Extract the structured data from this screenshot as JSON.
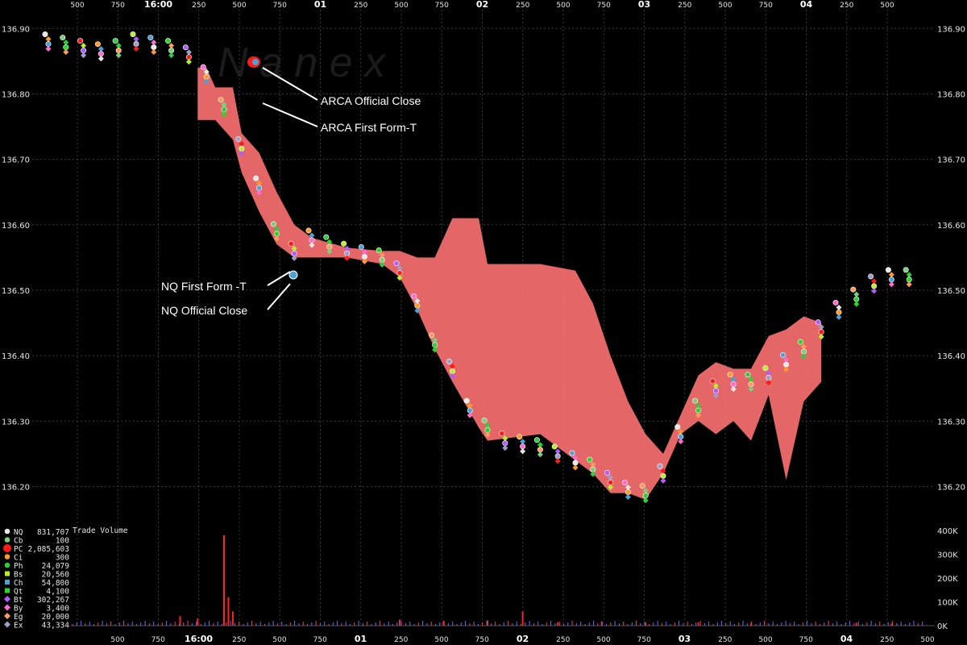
{
  "colors": {
    "background": "#000000",
    "grid": "#3a3a3a",
    "nbbo_band": "#f06b6b",
    "volume": "#ff2020",
    "annotation_line": "#ffffff"
  },
  "watermark": "N a n e x",
  "chart_data": {
    "type": "scatter",
    "title": "",
    "xlabel": "",
    "ylabel": "",
    "x_axis": {
      "categorical_time_ticks": [
        "500",
        "750",
        "16:00",
        "250",
        "500",
        "750",
        "01",
        "250",
        "500",
        "750",
        "02",
        "250",
        "500",
        "750",
        "03",
        "250",
        "500",
        "750",
        "04",
        "250",
        "500"
      ],
      "bold_ticks": [
        "16:00",
        "01",
        "02",
        "03",
        "04"
      ]
    },
    "y_axis": {
      "ticks": [
        "136.90",
        "136.80",
        "136.70",
        "136.60",
        "136.50",
        "136.40",
        "136.30",
        "136.20"
      ],
      "ylim": [
        136.155,
        136.925
      ]
    },
    "volume_axis": {
      "label": "Trade Volume",
      "ticks": [
        "400K",
        "300K",
        "200K",
        "100K",
        "0K"
      ],
      "ylim": [
        0,
        400000
      ]
    },
    "annotations": [
      {
        "text": "ARCA Official Close",
        "price": 136.875
      },
      {
        "text": "ARCA First Form-T",
        "price": 136.81
      },
      {
        "text": "NQ First Form -T",
        "price": 136.56
      },
      {
        "text": "NQ Official Close",
        "price": 136.54
      }
    ],
    "legend": [
      {
        "code": "NQ",
        "count": "831,707",
        "color": "#e8e8e8",
        "marker": "circle"
      },
      {
        "code": "Cb",
        "count": "100",
        "color": "#7ad07a",
        "marker": "circle"
      },
      {
        "code": "PC",
        "count": "2,085,603",
        "color": "#ff1a1a",
        "marker": "big-circle"
      },
      {
        "code": "Ci",
        "count": "300",
        "color": "#ff9a2a",
        "marker": "circle"
      },
      {
        "code": "Ph",
        "count": "24,079",
        "color": "#2ecc40",
        "marker": "circle"
      },
      {
        "code": "Bs",
        "count": "20,560",
        "color": "#b8f02a",
        "marker": "square"
      },
      {
        "code": "Ch",
        "count": "54,800",
        "color": "#4aa3d8",
        "marker": "square"
      },
      {
        "code": "Qt",
        "count": "4,100",
        "color": "#28d828",
        "marker": "square"
      },
      {
        "code": "Bt",
        "count": "302,267",
        "color": "#b05cff",
        "marker": "diamond"
      },
      {
        "code": "By",
        "count": "3,400",
        "color": "#ff6ad5",
        "marker": "diamond"
      },
      {
        "code": "Eg",
        "count": "20,000",
        "color": "#ff9a5a",
        "marker": "diamond"
      },
      {
        "code": "Ex",
        "count": "43,334",
        "color": "#9aa0c8",
        "marker": "diamond"
      }
    ],
    "price_series": [
      {
        "t": 0,
        "p": 136.88
      },
      {
        "t": 2,
        "p": 136.875
      },
      {
        "t": 4,
        "p": 136.87
      },
      {
        "t": 6,
        "p": 136.865
      },
      {
        "t": 8,
        "p": 136.87
      },
      {
        "t": 10,
        "p": 136.88
      },
      {
        "t": 12,
        "p": 136.875
      },
      {
        "t": 14,
        "p": 136.87
      },
      {
        "t": 16,
        "p": 136.86
      },
      {
        "t": 18,
        "p": 136.83
      },
      {
        "t": 20,
        "p": 136.78
      },
      {
        "t": 22,
        "p": 136.72
      },
      {
        "t": 24,
        "p": 136.66
      },
      {
        "t": 26,
        "p": 136.59
      },
      {
        "t": 28,
        "p": 136.56
      },
      {
        "t": 30,
        "p": 136.58
      },
      {
        "t": 32,
        "p": 136.57
      },
      {
        "t": 34,
        "p": 136.56
      },
      {
        "t": 36,
        "p": 136.555
      },
      {
        "t": 38,
        "p": 136.55
      },
      {
        "t": 40,
        "p": 136.53
      },
      {
        "t": 42,
        "p": 136.48
      },
      {
        "t": 44,
        "p": 136.42
      },
      {
        "t": 46,
        "p": 136.38
      },
      {
        "t": 48,
        "p": 136.32
      },
      {
        "t": 50,
        "p": 136.29
      },
      {
        "t": 52,
        "p": 136.27
      },
      {
        "t": 54,
        "p": 136.265
      },
      {
        "t": 56,
        "p": 136.26
      },
      {
        "t": 58,
        "p": 136.25
      },
      {
        "t": 60,
        "p": 136.24
      },
      {
        "t": 62,
        "p": 136.23
      },
      {
        "t": 64,
        "p": 136.21
      },
      {
        "t": 66,
        "p": 136.195
      },
      {
        "t": 68,
        "p": 136.19
      },
      {
        "t": 70,
        "p": 136.22
      },
      {
        "t": 72,
        "p": 136.28
      },
      {
        "t": 74,
        "p": 136.32
      },
      {
        "t": 76,
        "p": 136.35
      },
      {
        "t": 78,
        "p": 136.36
      },
      {
        "t": 80,
        "p": 136.36
      },
      {
        "t": 82,
        "p": 136.37
      },
      {
        "t": 84,
        "p": 136.39
      },
      {
        "t": 86,
        "p": 136.41
      },
      {
        "t": 88,
        "p": 136.44
      },
      {
        "t": 90,
        "p": 136.47
      },
      {
        "t": 92,
        "p": 136.49
      },
      {
        "t": 94,
        "p": 136.51
      },
      {
        "t": 96,
        "p": 136.52
      },
      {
        "t": 98,
        "p": 136.52
      }
    ],
    "band_top": [
      {
        "t": 17,
        "p": 136.84
      },
      {
        "t": 18,
        "p": 136.84
      },
      {
        "t": 19,
        "p": 136.81
      },
      {
        "t": 21,
        "p": 136.81
      },
      {
        "t": 22,
        "p": 136.74
      },
      {
        "t": 24,
        "p": 136.71
      },
      {
        "t": 26,
        "p": 136.65
      },
      {
        "t": 28,
        "p": 136.6
      },
      {
        "t": 30,
        "p": 136.58
      },
      {
        "t": 34,
        "p": 136.565
      },
      {
        "t": 38,
        "p": 136.56
      },
      {
        "t": 40,
        "p": 136.56
      },
      {
        "t": 42,
        "p": 136.55
      },
      {
        "t": 44,
        "p": 136.55
      },
      {
        "t": 46,
        "p": 136.61
      },
      {
        "t": 49,
        "p": 136.61
      },
      {
        "t": 50,
        "p": 136.54
      },
      {
        "t": 56,
        "p": 136.54
      },
      {
        "t": 60,
        "p": 136.53
      },
      {
        "t": 62,
        "p": 136.48
      },
      {
        "t": 64,
        "p": 136.4
      },
      {
        "t": 66,
        "p": 136.33
      },
      {
        "t": 68,
        "p": 136.28
      },
      {
        "t": 70,
        "p": 136.25
      },
      {
        "t": 72,
        "p": 136.31
      },
      {
        "t": 74,
        "p": 136.37
      },
      {
        "t": 76,
        "p": 136.39
      },
      {
        "t": 78,
        "p": 136.38
      },
      {
        "t": 80,
        "p": 136.38
      },
      {
        "t": 82,
        "p": 136.43
      },
      {
        "t": 84,
        "p": 136.44
      },
      {
        "t": 86,
        "p": 136.46
      },
      {
        "t": 88,
        "p": 136.45
      }
    ],
    "band_bottom": [
      {
        "t": 17,
        "p": 136.76
      },
      {
        "t": 18,
        "p": 136.76
      },
      {
        "t": 19,
        "p": 136.76
      },
      {
        "t": 21,
        "p": 136.73
      },
      {
        "t": 22,
        "p": 136.68
      },
      {
        "t": 24,
        "p": 136.62
      },
      {
        "t": 26,
        "p": 136.57
      },
      {
        "t": 28,
        "p": 136.55
      },
      {
        "t": 30,
        "p": 136.55
      },
      {
        "t": 34,
        "p": 136.55
      },
      {
        "t": 38,
        "p": 136.54
      },
      {
        "t": 40,
        "p": 136.52
      },
      {
        "t": 42,
        "p": 136.47
      },
      {
        "t": 44,
        "p": 136.41
      },
      {
        "t": 46,
        "p": 136.36
      },
      {
        "t": 49,
        "p": 136.29
      },
      {
        "t": 50,
        "p": 136.27
      },
      {
        "t": 56,
        "p": 136.28
      },
      {
        "t": 60,
        "p": 136.24
      },
      {
        "t": 62,
        "p": 136.22
      },
      {
        "t": 64,
        "p": 136.19
      },
      {
        "t": 66,
        "p": 136.19
      },
      {
        "t": 68,
        "p": 136.18
      },
      {
        "t": 70,
        "p": 136.22
      },
      {
        "t": 72,
        "p": 136.28
      },
      {
        "t": 74,
        "p": 136.3
      },
      {
        "t": 76,
        "p": 136.28
      },
      {
        "t": 78,
        "p": 136.3
      },
      {
        "t": 80,
        "p": 136.27
      },
      {
        "t": 82,
        "p": 136.34
      },
      {
        "t": 84,
        "p": 136.21
      },
      {
        "t": 86,
        "p": 136.33
      },
      {
        "t": 88,
        "p": 136.36
      }
    ],
    "volume_spikes": [
      {
        "t": 20,
        "v": 380000
      },
      {
        "t": 20.5,
        "v": 120000
      },
      {
        "t": 21,
        "v": 60000
      },
      {
        "t": 15,
        "v": 40000
      },
      {
        "t": 17,
        "v": 30000
      },
      {
        "t": 40,
        "v": 25000
      },
      {
        "t": 45,
        "v": 20000
      },
      {
        "t": 50,
        "v": 22000
      },
      {
        "t": 54,
        "v": 60000
      },
      {
        "t": 58,
        "v": 15000
      },
      {
        "t": 63,
        "v": 18000
      },
      {
        "t": 68,
        "v": 12000
      },
      {
        "t": 74,
        "v": 14000
      },
      {
        "t": 80,
        "v": 10000
      },
      {
        "t": 92,
        "v": 12000
      },
      {
        "t": 96,
        "v": 9000
      }
    ]
  }
}
